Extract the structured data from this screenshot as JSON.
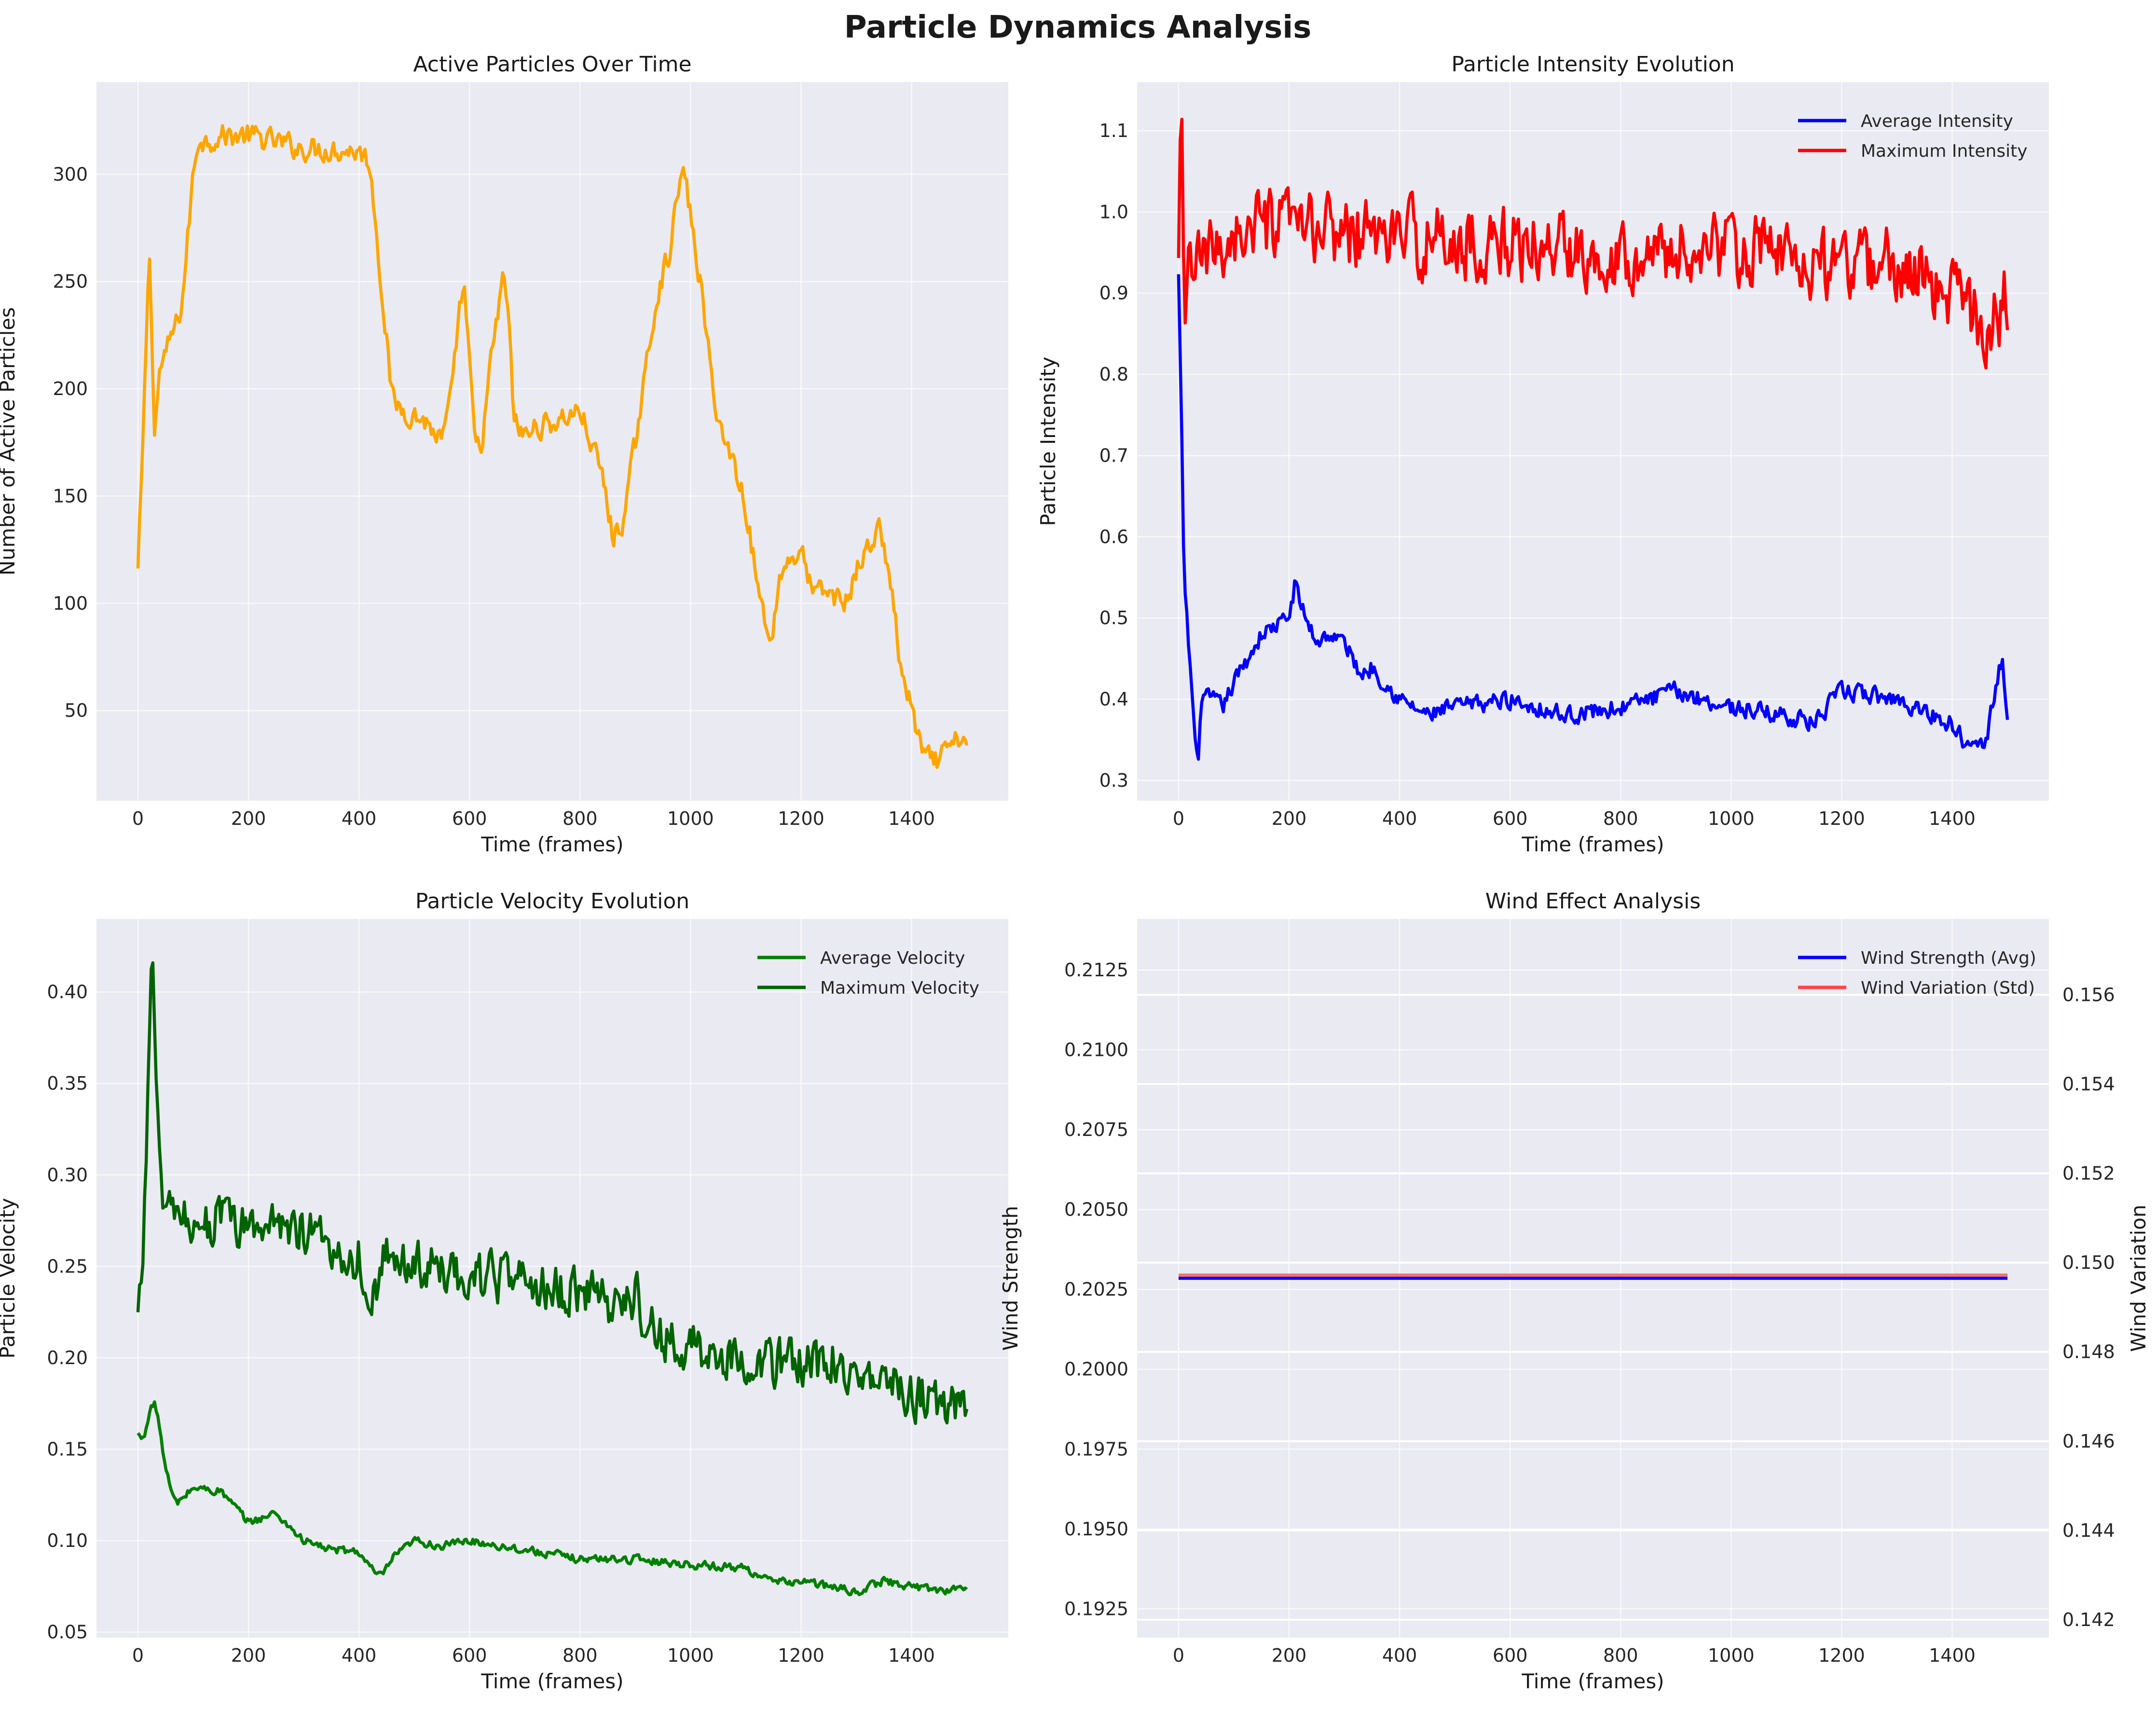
{
  "title": "Particle Dynamics Analysis",
  "colors": {
    "background": "#eaeaf2",
    "grid": "#ffffff"
  },
  "chart_data": [
    {
      "type": "line",
      "title": "Active Particles Over Time",
      "xlabel": "Time (frames)",
      "ylabel": "Number of Active Particles",
      "xlim": [
        -75,
        1575
      ],
      "ylim": [
        8,
        343
      ],
      "xticks": [
        0,
        200,
        400,
        600,
        800,
        1000,
        1200,
        1400
      ],
      "yticks": [
        50,
        100,
        150,
        200,
        250,
        300
      ],
      "grid": true,
      "legend": null,
      "series": [
        {
          "name": "",
          "color": "#ffa500",
          "jitter": 5,
          "x": [
            0,
            10,
            20,
            25,
            30,
            40,
            50,
            60,
            70,
            80,
            90,
            100,
            110,
            120,
            150,
            200,
            300,
            400,
            420,
            440,
            460,
            480,
            520,
            550,
            570,
            580,
            590,
            600,
            610,
            620,
            640,
            660,
            670,
            680,
            700,
            720,
            760,
            800,
            840,
            860,
            880,
            900,
            920,
            940,
            960,
            980,
            990,
            1000,
            1020,
            1040,
            1060,
            1080,
            1100,
            1120,
            1140,
            1150,
            1160,
            1170,
            1200,
            1220,
            1250,
            1280,
            1300,
            1320,
            1340,
            1360,
            1380,
            1400,
            1420,
            1440,
            1460,
            1480,
            1500
          ],
          "y": [
            115,
            180,
            265,
            230,
            180,
            210,
            215,
            225,
            230,
            240,
            270,
            300,
            318,
            315,
            318,
            318,
            312,
            311,
            305,
            250,
            195,
            190,
            185,
            175,
            200,
            235,
            248,
            210,
            175,
            170,
            215,
            250,
            240,
            185,
            178,
            182,
            185,
            190,
            160,
            130,
            140,
            175,
            210,
            245,
            262,
            295,
            300,
            280,
            245,
            200,
            176,
            165,
            145,
            110,
            85,
            90,
            110,
            118,
            125,
            105,
            105,
            100,
            115,
            125,
            135,
            115,
            70,
            50,
            30,
            25,
            30,
            35,
            38
          ]
        }
      ]
    },
    {
      "type": "line",
      "title": "Particle Intensity Evolution",
      "xlabel": "Time (frames)",
      "ylabel": "Particle Intensity",
      "xlim": [
        -75,
        1575
      ],
      "ylim": [
        0.275,
        1.16
      ],
      "xticks": [
        0,
        200,
        400,
        600,
        800,
        1000,
        1200,
        1400
      ],
      "yticks": [
        0.3,
        0.4,
        0.5,
        0.6,
        0.7,
        0.8,
        0.9,
        1.0,
        1.1
      ],
      "grid": true,
      "legend": "upper-right",
      "series": [
        {
          "name": "Average Intensity",
          "color": "#0000ff",
          "jitter": 0.01,
          "x": [
            0,
            5,
            10,
            20,
            30,
            35,
            40,
            60,
            80,
            100,
            150,
            200,
            210,
            230,
            250,
            270,
            300,
            330,
            350,
            400,
            450,
            500,
            600,
            700,
            800,
            900,
            1000,
            1100,
            1150,
            1200,
            1300,
            1400,
            1420,
            1440,
            1460,
            1480,
            1490,
            1500
          ],
          "y": [
            0.92,
            0.75,
            0.55,
            0.45,
            0.35,
            0.31,
            0.4,
            0.4,
            0.39,
            0.42,
            0.48,
            0.5,
            0.54,
            0.5,
            0.47,
            0.48,
            0.47,
            0.43,
            0.44,
            0.4,
            0.38,
            0.39,
            0.4,
            0.38,
            0.39,
            0.41,
            0.39,
            0.38,
            0.37,
            0.41,
            0.4,
            0.37,
            0.35,
            0.36,
            0.34,
            0.42,
            0.45,
            0.37
          ]
        },
        {
          "name": "Maximum Intensity",
          "color": "#ff0000",
          "jitter": 0.04,
          "x": [
            0,
            5,
            10,
            20,
            30,
            50,
            80,
            100,
            200,
            300,
            400,
            500,
            600,
            700,
            800,
            900,
            1000,
            1100,
            1150,
            1200,
            1300,
            1350,
            1400,
            1420,
            1440,
            1460,
            1480,
            1500
          ],
          "y": [
            0.93,
            1.125,
            0.86,
            0.95,
            0.93,
            0.94,
            0.96,
            0.975,
            0.98,
            0.975,
            0.97,
            0.96,
            0.96,
            0.955,
            0.95,
            0.95,
            0.955,
            0.945,
            0.94,
            0.93,
            0.935,
            0.92,
            0.9,
            0.89,
            0.87,
            0.86,
            0.87,
            0.9
          ]
        }
      ]
    },
    {
      "type": "line",
      "title": "Particle Velocity Evolution",
      "xlabel": "Time (frames)",
      "ylabel": "Particle Velocity",
      "xlim": [
        -75,
        1575
      ],
      "ylim": [
        0.047,
        0.44
      ],
      "xticks": [
        0,
        200,
        400,
        600,
        800,
        1000,
        1200,
        1400
      ],
      "yticks": [
        0.05,
        0.1,
        0.15,
        0.2,
        0.25,
        0.3,
        0.35,
        0.4
      ],
      "grid": true,
      "legend": "upper-right",
      "series": [
        {
          "name": "Average Velocity",
          "color": "#008000",
          "jitter": 0.002,
          "x": [
            0,
            10,
            20,
            30,
            40,
            50,
            60,
            70,
            80,
            100,
            150,
            200,
            250,
            300,
            350,
            400,
            420,
            440,
            460,
            480,
            500,
            550,
            600,
            700,
            800,
            900,
            1000,
            1100,
            1150,
            1200,
            1250,
            1300,
            1350,
            1400,
            1450,
            1500
          ],
          "y": [
            0.158,
            0.155,
            0.17,
            0.176,
            0.16,
            0.14,
            0.127,
            0.12,
            0.123,
            0.129,
            0.127,
            0.11,
            0.115,
            0.1,
            0.095,
            0.094,
            0.085,
            0.08,
            0.09,
            0.095,
            0.1,
            0.097,
            0.1,
            0.095,
            0.09,
            0.09,
            0.087,
            0.085,
            0.077,
            0.078,
            0.075,
            0.072,
            0.078,
            0.075,
            0.073,
            0.074
          ]
        },
        {
          "name": "Maximum Velocity",
          "color": "#006400",
          "jitter": 0.012,
          "x": [
            0,
            10,
            20,
            25,
            30,
            40,
            50,
            60,
            100,
            150,
            200,
            250,
            300,
            350,
            400,
            420,
            450,
            500,
            600,
            700,
            800,
            850,
            900,
            920,
            950,
            1000,
            1100,
            1200,
            1250,
            1300,
            1350,
            1400,
            1450,
            1500
          ],
          "y": [
            0.22,
            0.26,
            0.37,
            0.423,
            0.38,
            0.3,
            0.28,
            0.275,
            0.275,
            0.275,
            0.27,
            0.275,
            0.27,
            0.26,
            0.255,
            0.235,
            0.255,
            0.25,
            0.245,
            0.24,
            0.235,
            0.23,
            0.235,
            0.22,
            0.21,
            0.205,
            0.2,
            0.195,
            0.2,
            0.19,
            0.195,
            0.18,
            0.175,
            0.17
          ]
        }
      ]
    },
    {
      "type": "line",
      "title": "Wind Effect Analysis",
      "xlabel": "Time (frames)",
      "ylabel": "Wind Strength",
      "ylabel_color": "#0000ff",
      "ylabel_right": "Wind Variation",
      "ylabel_right_color": "#ff0000",
      "xlim": [
        -75,
        1575
      ],
      "ylim": [
        0.1916,
        0.2141
      ],
      "ylim_right": [
        0.1416,
        0.1577
      ],
      "xticks": [
        0,
        200,
        400,
        600,
        800,
        1000,
        1200,
        1400
      ],
      "yticks": [
        0.1925,
        0.195,
        0.1975,
        0.2,
        0.2025,
        0.205,
        0.2075,
        0.21,
        0.2125
      ],
      "yticks_right": [
        0.142,
        0.144,
        0.146,
        0.148,
        0.15,
        0.152,
        0.154,
        0.156
      ],
      "grid": true,
      "legend": "upper-right",
      "series": [
        {
          "name": "Wind Strength (Avg)",
          "color": "#0000ff",
          "axis": "left",
          "x": [
            0,
            1500
          ],
          "y": [
            0.20285,
            0.20285
          ]
        },
        {
          "name": "Wind Variation (Std)",
          "color": "#ff4444",
          "axis": "right",
          "x": [
            0,
            1500
          ],
          "y": [
            0.14972,
            0.14972
          ]
        }
      ]
    }
  ]
}
